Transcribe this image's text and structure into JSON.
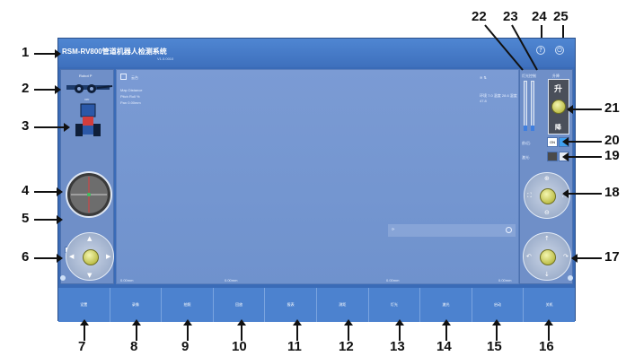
{
  "window": {
    "title": "RSM-RV800管道机器人检测系统",
    "version": "V1.0.0010"
  },
  "left_panel": {
    "robot_label": "Robot P",
    "robot_label_2": "ver",
    "slider_value_label": "0%"
  },
  "video": {
    "camera_label": "云台",
    "overlay_lines": [
      "Map  Distance",
      "Pitch  Roll  %",
      "Pan  0.00mm"
    ],
    "right_info": "环境 7.0 温度 28.6 湿度 47.8",
    "bottom_readouts": [
      "0.00mm",
      "0.00mm",
      "0.00mm",
      "0.00mm"
    ]
  },
  "right_panel": {
    "lift_title": "升降",
    "lift_up": "升",
    "lift_down": "降",
    "bar_label": "灯光控制",
    "row20_label": "前/后:",
    "row20_value": "ON",
    "row19_label": "激光:"
  },
  "toolbar": {
    "buttons": [
      "设置",
      "录像",
      "拍照",
      "回放",
      "报表",
      "测距",
      "灯光",
      "激光",
      "启动",
      "关机"
    ]
  },
  "callouts": [
    "1",
    "2",
    "3",
    "4",
    "5",
    "6",
    "7",
    "8",
    "9",
    "10",
    "11",
    "12",
    "13",
    "14",
    "15",
    "16",
    "17",
    "18",
    "19",
    "20",
    "21",
    "22",
    "23",
    "24",
    "25"
  ]
}
